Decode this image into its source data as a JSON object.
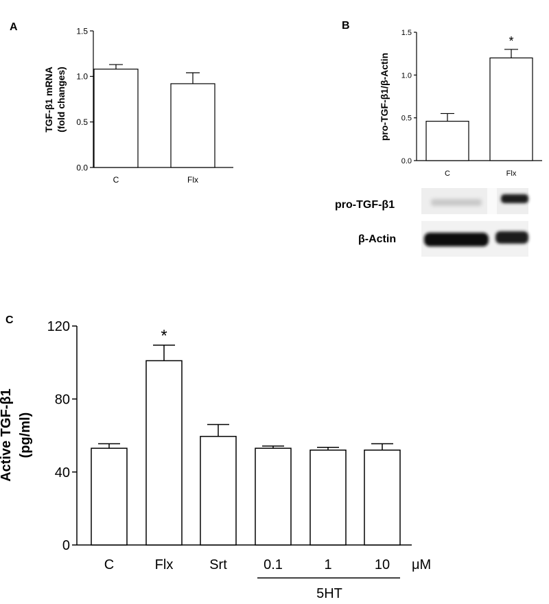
{
  "panels": {
    "a": {
      "letter": "A"
    },
    "b": {
      "letter": "B",
      "blot_labels": [
        "pro-TGF-β1",
        "β-Actin"
      ]
    },
    "c": {
      "letter": "C",
      "unit": "μM",
      "group_label": "5HT"
    }
  },
  "chart_data": [
    {
      "id": "a",
      "type": "bar",
      "categories": [
        "C",
        "Flx"
      ],
      "values": [
        1.08,
        0.92
      ],
      "errors": [
        0.05,
        0.12
      ],
      "ylabel_lines": [
        "TGF-β1 mRNA",
        "(fold changes)"
      ],
      "xlabel": "",
      "ylim": [
        0,
        1.5
      ],
      "yticks": [
        0.0,
        0.5,
        1.0,
        1.5
      ],
      "ytick_labels": [
        "0.0",
        "0.5",
        "1.0",
        "1.5"
      ],
      "significance": [
        "",
        ""
      ],
      "grid": false
    },
    {
      "id": "b",
      "type": "bar",
      "categories": [
        "C",
        "Flx"
      ],
      "values": [
        0.46,
        1.2
      ],
      "errors": [
        0.09,
        0.1
      ],
      "ylabel_lines": [
        "pro-TGF-β1/β-Actin"
      ],
      "xlabel": "",
      "ylim": [
        0,
        1.5
      ],
      "yticks": [
        0.0,
        0.5,
        1.0,
        1.5
      ],
      "ytick_labels": [
        "0.0",
        "0.5",
        "1.0",
        "1.5"
      ],
      "significance": [
        "",
        "*"
      ],
      "grid": false
    },
    {
      "id": "c",
      "type": "bar",
      "categories": [
        "C",
        "Flx",
        "Srt",
        "0.1",
        "1",
        "10"
      ],
      "values": [
        53,
        101,
        59.5,
        53,
        52,
        52
      ],
      "errors": [
        2.5,
        8.5,
        6.5,
        1.2,
        1.5,
        3.5
      ],
      "ylabel_lines": [
        "Active TGF-β1",
        "(pg/ml)"
      ],
      "xlabel": "",
      "ylim": [
        0,
        120
      ],
      "yticks": [
        0,
        40,
        80,
        120
      ],
      "ytick_labels": [
        "0",
        "40",
        "80",
        "120"
      ],
      "significance": [
        "",
        "*",
        "",
        "",
        "",
        ""
      ],
      "grid": false
    }
  ]
}
